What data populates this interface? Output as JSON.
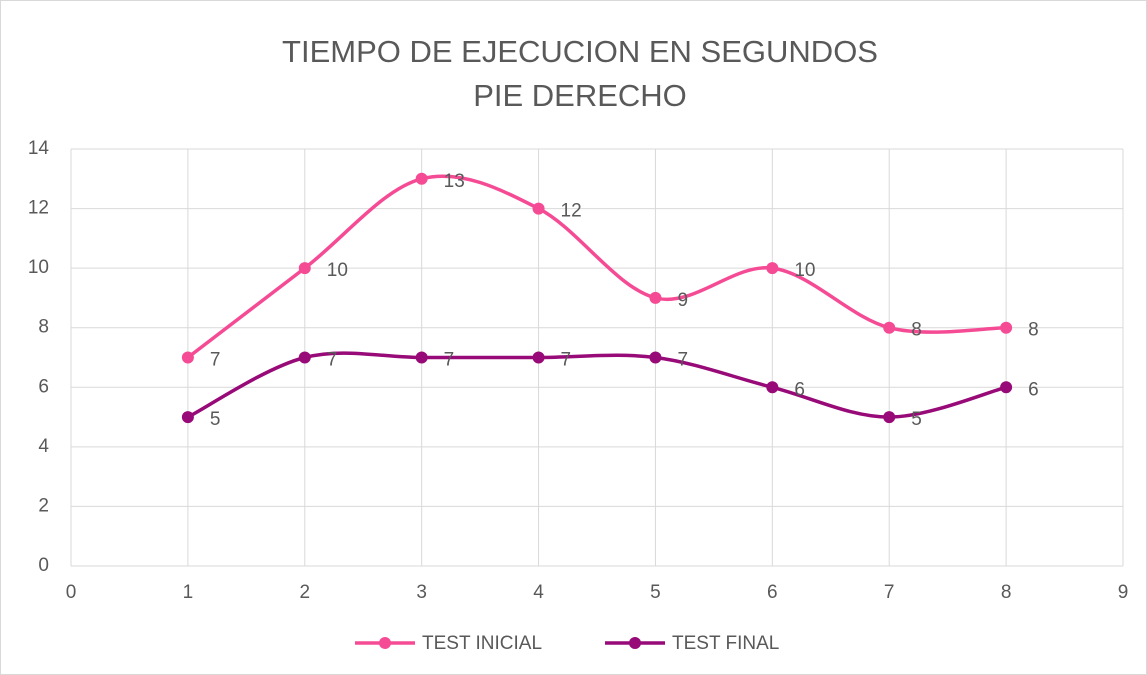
{
  "chart_data": {
    "type": "line",
    "title": [
      "TIEMPO DE EJECUCION EN SEGUNDOS",
      "PIE DERECHO"
    ],
    "x": [
      1,
      2,
      3,
      4,
      5,
      6,
      7,
      8
    ],
    "series": [
      {
        "name": "TEST INICIAL",
        "color": "#f54b95",
        "values": [
          7,
          10,
          13,
          12,
          9,
          10,
          8,
          8
        ]
      },
      {
        "name": "TEST FINAL",
        "color": "#970a78",
        "values": [
          5,
          7,
          7,
          7,
          7,
          6,
          5,
          6
        ]
      }
    ],
    "xlim": [
      0,
      9
    ],
    "xticks": [
      0,
      1,
      2,
      3,
      4,
      5,
      6,
      7,
      8,
      9
    ],
    "ylim": [
      0,
      14
    ],
    "yticks": [
      0,
      2,
      4,
      6,
      8,
      10,
      12,
      14
    ],
    "grid": true,
    "smooth": true,
    "legend": "bottom"
  }
}
